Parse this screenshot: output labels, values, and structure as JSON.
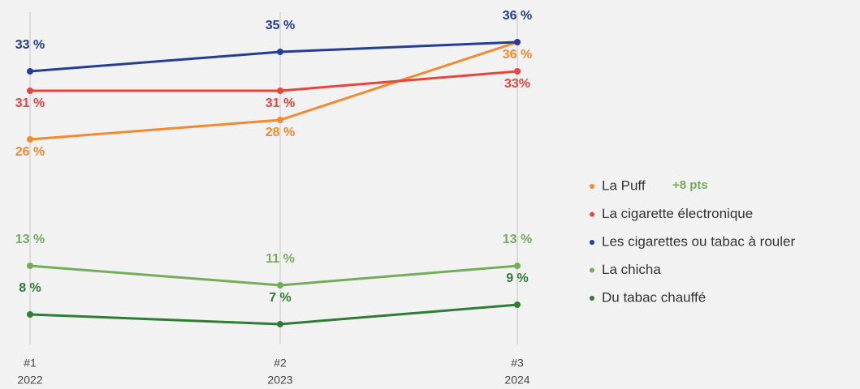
{
  "chart_data": {
    "type": "line",
    "categories": [
      "#1",
      "#2",
      "#3"
    ],
    "category_sublabels": [
      "2022",
      "2023",
      "2024"
    ],
    "series": [
      {
        "name": "La Puff",
        "color": "#f28a30",
        "values": [
          26,
          28,
          36
        ],
        "value_labels": [
          "26 %",
          "28 %",
          "36 %"
        ]
      },
      {
        "name": "La cigarette électronique",
        "color": "#e8453c",
        "values": [
          31,
          31,
          33
        ],
        "value_labels": [
          "31 %",
          "31 %",
          "33%"
        ]
      },
      {
        "name": "Les cigarettes ou tabac à rouler",
        "color": "#233e94",
        "values": [
          33,
          35,
          36
        ],
        "value_labels": [
          "33 %",
          "35 %",
          "36 %"
        ]
      },
      {
        "name": "La chicha",
        "color": "#74ad5a",
        "values": [
          13,
          11,
          13
        ],
        "value_labels": [
          "13 %",
          "11 %",
          "13 %"
        ]
      },
      {
        "name": "Du tabac chauffé",
        "color": "#2e7d32",
        "values": [
          8,
          7,
          9
        ],
        "value_labels": [
          "8 %",
          "7 %",
          "9 %"
        ]
      }
    ],
    "annotations": [
      {
        "text": "+8 pts",
        "series": 0,
        "color": "#74ad5a"
      }
    ],
    "grid": true
  }
}
